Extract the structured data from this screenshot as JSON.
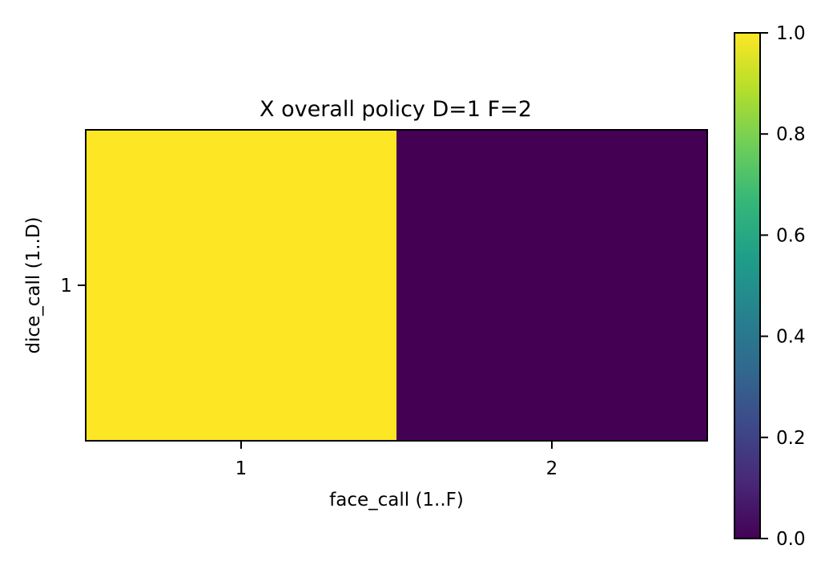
{
  "chart_data": {
    "type": "heatmap",
    "title": "X overall policy D=1 F=2",
    "xlabel": "face_call (1..F)",
    "ylabel": "dice_call (1..D)",
    "x_ticks": [
      "1",
      "2"
    ],
    "y_ticks": [
      "1"
    ],
    "values": [
      [
        1.0,
        0.0
      ]
    ],
    "colormap": "viridis",
    "colorbar": {
      "range": [
        0.0,
        1.0
      ],
      "ticks": [
        "0.0",
        "0.2",
        "0.4",
        "0.6",
        "0.8",
        "1.0"
      ]
    },
    "grid": false
  },
  "colors": {
    "viridis": [
      "#440154",
      "#482878",
      "#3e4989",
      "#31688e",
      "#26828e",
      "#1f9e89",
      "#35b779",
      "#6ece58",
      "#b5de2b",
      "#fde725"
    ]
  }
}
